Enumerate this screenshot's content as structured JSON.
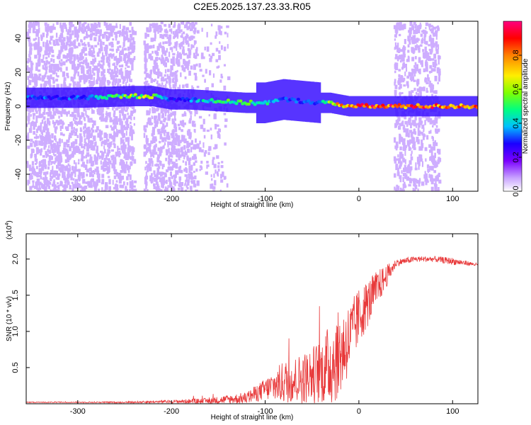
{
  "title": "C2E5.2025.137.23.33.R05",
  "chart_data": [
    {
      "type": "heatmap",
      "xlabel": "Height of straight line (km)",
      "ylabel": "Frequency (Hz)",
      "xlim": [
        -355,
        127
      ],
      "ylim": [
        -50,
        50
      ],
      "x_ticks": [
        -300,
        -200,
        -100,
        0,
        100
      ],
      "y_ticks": [
        -40,
        -20,
        0,
        20,
        40
      ],
      "colorbar": {
        "label": "Normalized spectral amplitude",
        "range": [
          0,
          1
        ],
        "ticks": [
          "0.0",
          "0.2",
          "0.4",
          "0.6",
          "0.8"
        ],
        "colors": [
          "#ffffff",
          "#c7a0ff",
          "#7a00ff",
          "#1a00ff",
          "#00c0ff",
          "#00ff80",
          "#80ff00",
          "#ffee00",
          "#ff8000",
          "#ff0000",
          "#ff0080"
        ]
      },
      "ridge": {
        "x": [
          -355,
          -300,
          -240,
          -220,
          -200,
          -180,
          -150,
          -120,
          -100,
          -80,
          -60,
          -40,
          -30,
          -20,
          -10,
          0,
          40,
          80,
          127
        ],
        "freq": [
          5,
          5,
          6,
          6,
          4,
          4,
          3,
          2,
          2,
          4,
          3,
          2,
          2,
          1,
          0,
          0,
          0,
          0,
          0
        ],
        "amplitude": [
          0.35,
          0.35,
          0.65,
          0.65,
          0.3,
          0.4,
          0.55,
          0.55,
          0.5,
          0.35,
          0.35,
          0.4,
          0.7,
          0.8,
          0.85,
          0.9,
          0.9,
          0.9,
          0.85
        ]
      },
      "noise_regions": [
        {
          "x": [
            -355,
            -240
          ],
          "density": 1.0
        },
        {
          "x": [
            -230,
            -175
          ],
          "density": 0.9
        },
        {
          "x": [
            -175,
            -140
          ],
          "density": 0.25
        },
        {
          "x": [
            37,
            85
          ],
          "density": 0.85
        }
      ]
    },
    {
      "type": "line",
      "xlabel": "Height of straight line (km)",
      "ylabel": "SNR (10 * v/v)",
      "y_multiplier": "(x10",
      "y_multiplier_exp": "4",
      "y_multiplier_close": ")",
      "xlim": [
        -355,
        127
      ],
      "ylim": [
        0,
        2.35
      ],
      "x_ticks": [
        -300,
        -200,
        -100,
        0,
        100
      ],
      "y_ticks": [
        "0.5",
        "1.0",
        "1.5",
        "2.0"
      ],
      "color": "#e8393a",
      "envelope": {
        "x": [
          -355,
          -250,
          -200,
          -160,
          -120,
          -100,
          -80,
          -60,
          -40,
          -30,
          -20,
          -10,
          0,
          20,
          40,
          60,
          80,
          100,
          127
        ],
        "mean": [
          0.02,
          0.02,
          0.03,
          0.04,
          0.08,
          0.2,
          0.3,
          0.35,
          0.45,
          0.55,
          0.7,
          0.9,
          1.2,
          1.6,
          1.95,
          2.0,
          2.0,
          1.97,
          1.92
        ],
        "spread": [
          0.005,
          0.01,
          0.02,
          0.04,
          0.08,
          0.15,
          0.3,
          0.35,
          0.45,
          0.6,
          0.6,
          0.5,
          0.4,
          0.25,
          0.05,
          0.04,
          0.04,
          0.05,
          0.02
        ]
      }
    }
  ]
}
